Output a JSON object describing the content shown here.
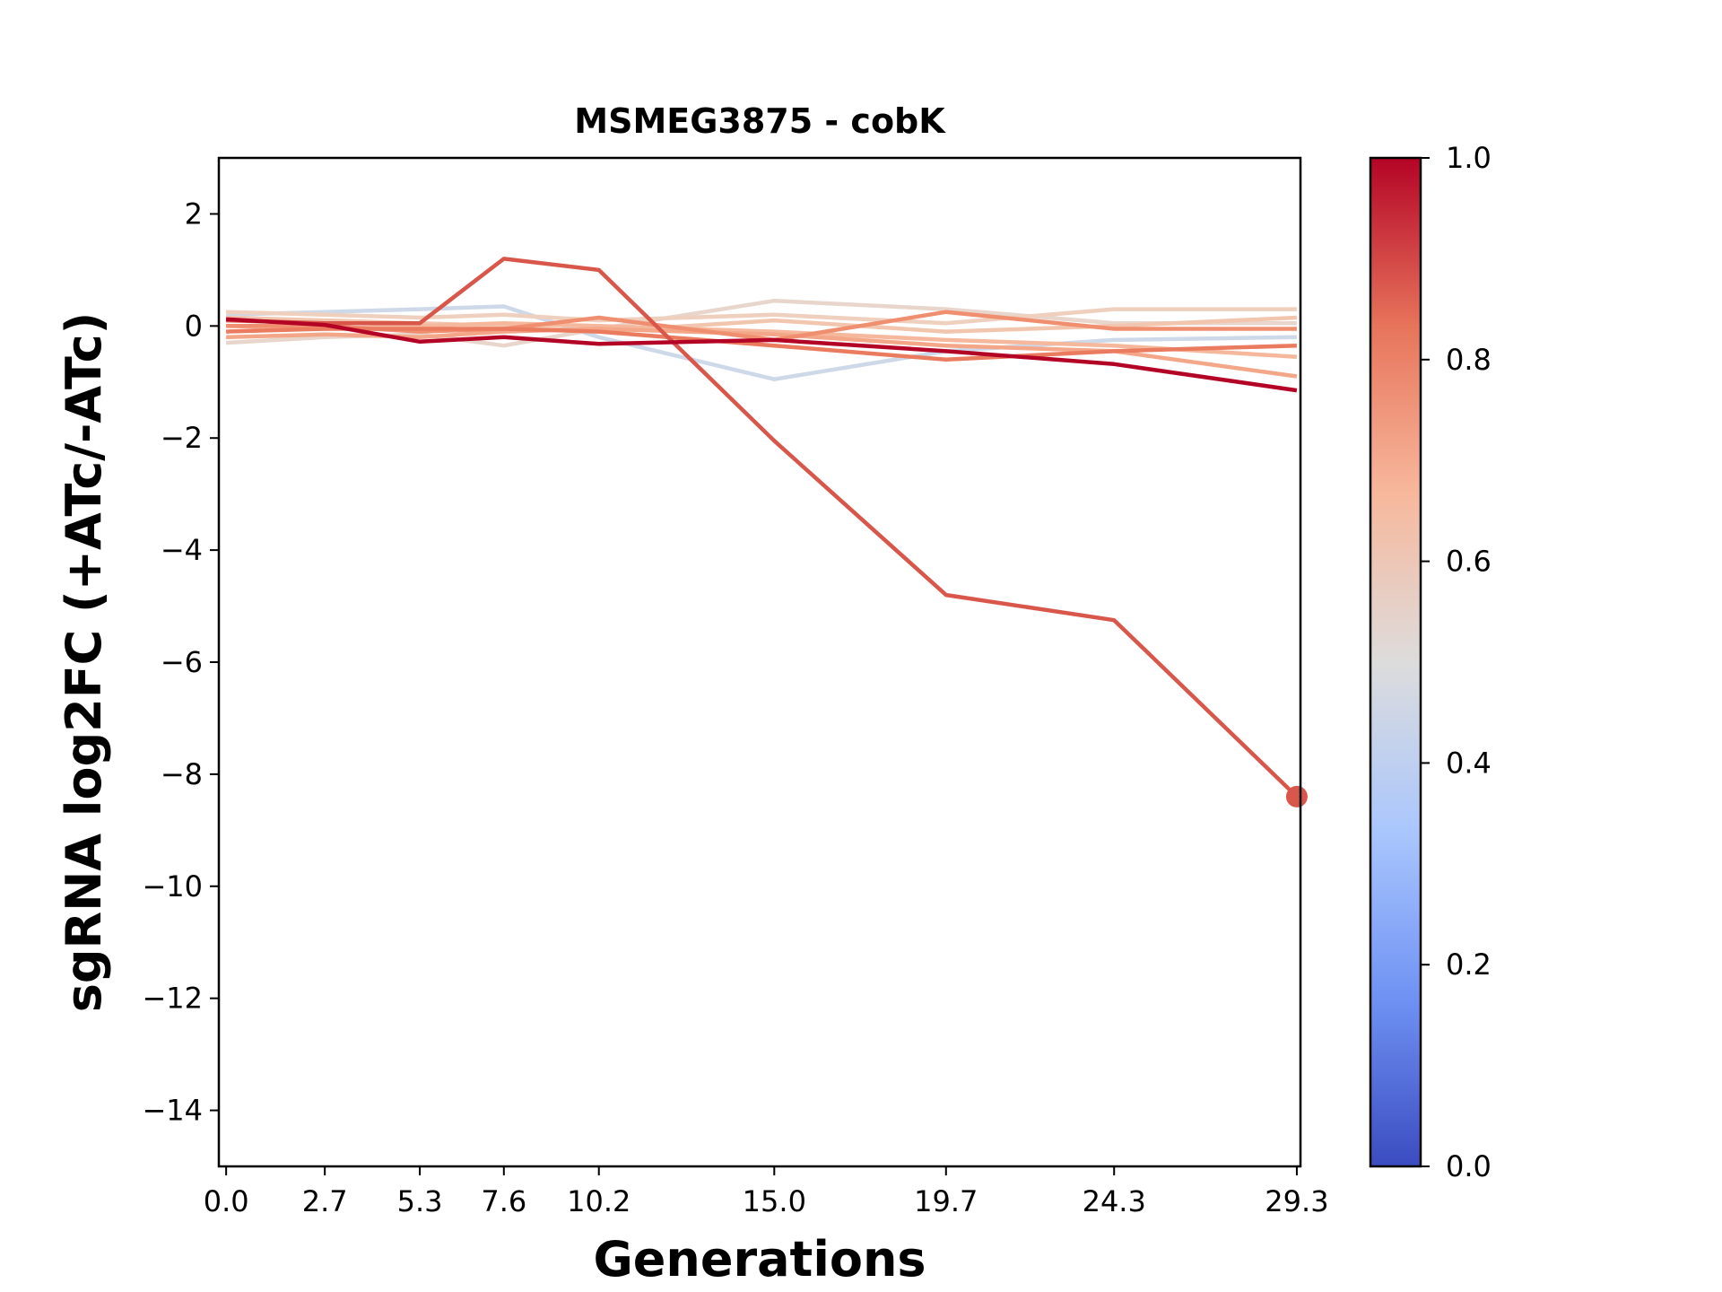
{
  "chart_data": {
    "type": "line",
    "title": "MSMEG3875 - cobK",
    "xlabel": "Generations",
    "ylabel": "sgRNA log2FC (+ATc/-ATc)",
    "x": [
      0.0,
      2.7,
      5.3,
      7.6,
      10.2,
      15.0,
      19.7,
      24.3,
      29.3
    ],
    "x_tick_labels": [
      "0.0",
      "2.7",
      "5.3",
      "7.6",
      "10.2",
      "15.0",
      "19.7",
      "24.3",
      "29.3"
    ],
    "xlim": [
      -0.2,
      29.4
    ],
    "ylim": [
      -15,
      3
    ],
    "y_ticks": [
      2,
      0,
      -2,
      -4,
      -6,
      -8,
      -10,
      -12,
      -14
    ],
    "y_tick_labels": [
      "2",
      "0",
      "−2",
      "−4",
      "−6",
      "−8",
      "−10",
      "−12",
      "−14"
    ],
    "grid": false,
    "series": [
      {
        "color": "#cdd9e9",
        "values": [
          0.2,
          0.25,
          0.3,
          0.35,
          -0.2,
          -0.95,
          -0.45,
          -0.25,
          -0.2
        ]
      },
      {
        "color": "#e8d5cb",
        "values": [
          -0.3,
          -0.2,
          -0.15,
          -0.35,
          -0.05,
          0.45,
          0.3,
          0.05,
          0.05
        ]
      },
      {
        "color": "#efcfbd",
        "values": [
          0.25,
          0.2,
          0.15,
          0.2,
          0.1,
          0.2,
          0.05,
          0.3,
          0.3
        ]
      },
      {
        "color": "#f2c6ae",
        "values": [
          0.15,
          0.1,
          0.05,
          0.0,
          -0.1,
          0.1,
          -0.1,
          0.0,
          0.15
        ]
      },
      {
        "color": "#f5b89c",
        "values": [
          0.0,
          -0.05,
          0.0,
          0.05,
          0.0,
          -0.1,
          -0.25,
          -0.35,
          -0.55
        ]
      },
      {
        "color": "#f4a688",
        "values": [
          -0.2,
          -0.15,
          -0.2,
          -0.1,
          -0.05,
          -0.15,
          -0.35,
          -0.45,
          -0.9
        ]
      },
      {
        "color": "#f08e70",
        "values": [
          0.0,
          0.0,
          -0.1,
          -0.05,
          0.15,
          -0.25,
          0.25,
          -0.05,
          -0.05
        ]
      },
      {
        "color": "#ea7b5f",
        "values": [
          -0.1,
          -0.05,
          -0.05,
          -0.05,
          -0.1,
          -0.35,
          -0.6,
          -0.45,
          -0.35
        ]
      },
      {
        "color": "#d8574a",
        "values": [
          0.1,
          0.05,
          0.05,
          1.2,
          1.0,
          -2.05,
          -4.8,
          -5.25,
          -8.4
        ],
        "end_marker": true
      },
      {
        "color": "#b40426",
        "values": [
          0.12,
          0.02,
          -0.28,
          -0.2,
          -0.32,
          -0.25,
          -0.45,
          -0.68,
          -1.15
        ]
      }
    ],
    "colorbar": {
      "range": [
        0.0,
        1.0
      ],
      "ticks": [
        0.0,
        0.2,
        0.4,
        0.6,
        0.8,
        1.0
      ],
      "tick_labels": [
        "0.0",
        "0.2",
        "0.4",
        "0.6",
        "0.8",
        "1.0"
      ],
      "colormap": "coolwarm",
      "stops": [
        "#3b4cc0",
        "#6f92f3",
        "#aac7fd",
        "#dddcdc",
        "#f7b89c",
        "#e7745b",
        "#b40426"
      ]
    }
  }
}
